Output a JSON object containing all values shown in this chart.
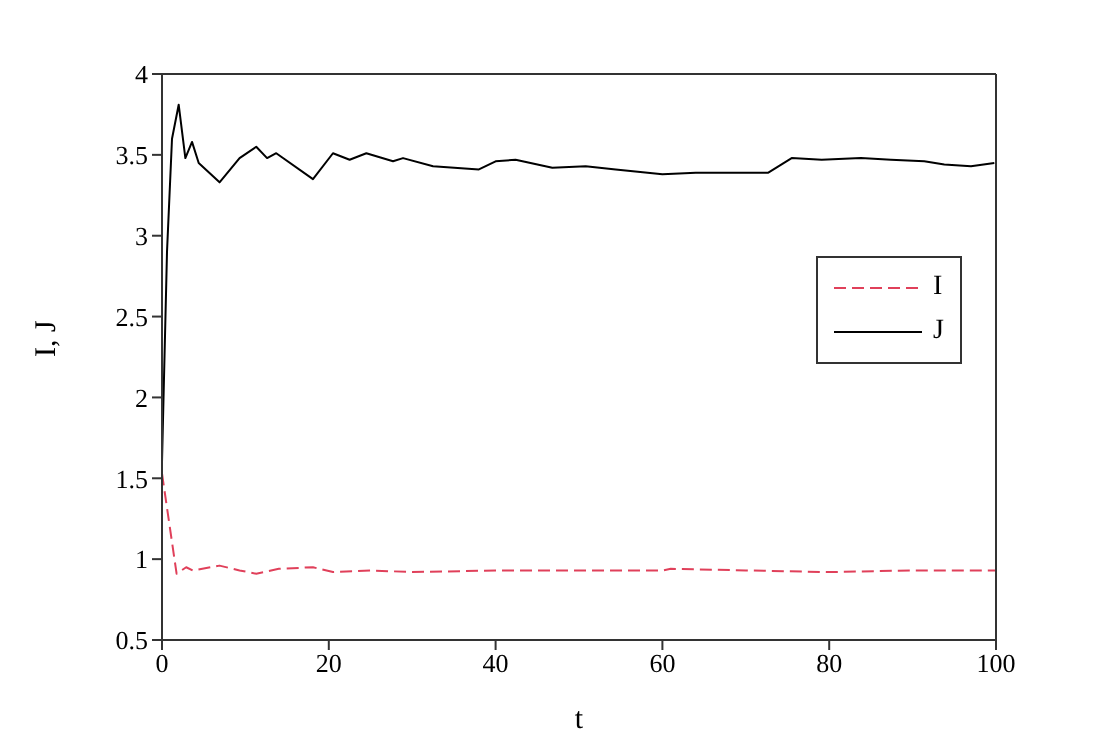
{
  "chart_data": {
    "type": "line",
    "xlabel": "t",
    "ylabel": "I, J",
    "xlim": [
      0,
      100
    ],
    "ylim": [
      0.5,
      4
    ],
    "xticks": [
      0,
      20,
      40,
      60,
      80,
      100
    ],
    "yticks": [
      0.5,
      1,
      1.5,
      2,
      2.5,
      3,
      3.5,
      4
    ],
    "grid": false,
    "legend": "right",
    "marker": "none",
    "series": [
      {
        "name": "I",
        "color": "#e0405a",
        "line_style": "dashed",
        "x": [
          0,
          1.75,
          2.9,
          3.7,
          6.9,
          9.3,
          11.3,
          14,
          18.1,
          20.5,
          25,
          30,
          40,
          50,
          60,
          61,
          70,
          80,
          90,
          100
        ],
        "values": [
          1.53,
          0.91,
          0.95,
          0.93,
          0.96,
          0.93,
          0.91,
          0.94,
          0.95,
          0.92,
          0.93,
          0.92,
          0.93,
          0.93,
          0.93,
          0.94,
          0.93,
          0.92,
          0.93,
          0.93
        ]
      },
      {
        "name": "J",
        "color": "#000000",
        "line_style": "solid",
        "x": [
          0,
          0.6,
          1.2,
          2,
          2.8,
          3.6,
          4.4,
          6.9,
          9.3,
          11.3,
          12.6,
          13.7,
          18.1,
          20.5,
          22.5,
          24.5,
          27.7,
          28.9,
          32.5,
          38,
          40,
          42.4,
          46.8,
          50.8,
          54.4,
          60,
          64,
          67.6,
          72.7,
          75.5,
          79.1,
          83.8,
          87.4,
          91.4,
          93.8,
          97,
          99.8
        ],
        "values": [
          1.6,
          2.9,
          3.6,
          3.81,
          3.48,
          3.58,
          3.45,
          3.33,
          3.48,
          3.55,
          3.48,
          3.51,
          3.35,
          3.51,
          3.47,
          3.51,
          3.46,
          3.48,
          3.43,
          3.41,
          3.46,
          3.47,
          3.42,
          3.43,
          3.41,
          3.38,
          3.39,
          3.39,
          3.39,
          3.48,
          3.47,
          3.48,
          3.47,
          3.46,
          3.44,
          3.43,
          3.45
        ]
      }
    ]
  }
}
